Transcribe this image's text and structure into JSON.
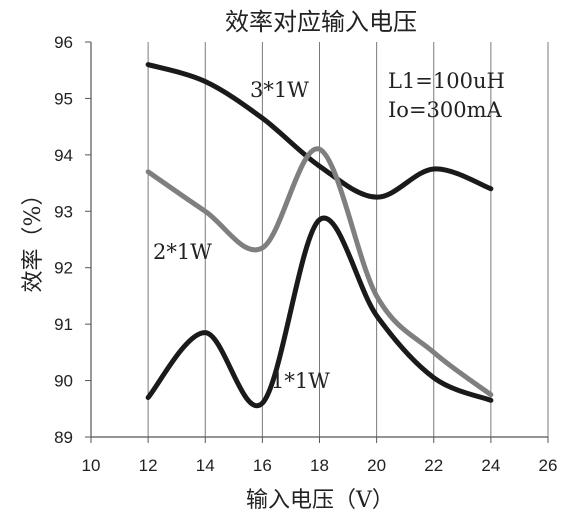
{
  "chart_data": {
    "type": "line",
    "title": "效率对应输入电压",
    "xlabel": "输入电压（V）",
    "ylabel": "效率（%）",
    "xlim": [
      10,
      26
    ],
    "ylim": [
      89,
      96
    ],
    "xticks": [
      10,
      12,
      14,
      16,
      18,
      20,
      22,
      24,
      26
    ],
    "yticks": [
      89,
      90,
      91,
      92,
      93,
      94,
      95,
      96
    ],
    "grid": "vertical",
    "annotation": {
      "line1": "L1=100uH",
      "line2": "Io=300mA"
    },
    "series": [
      {
        "name": "3*1W",
        "color": "#1a1a1a",
        "x": [
          12,
          14,
          16,
          18,
          20,
          22,
          24
        ],
        "y": [
          95.6,
          95.3,
          94.65,
          93.8,
          93.25,
          93.75,
          93.4
        ]
      },
      {
        "name": "2*1W",
        "color": "#7f7f7f",
        "x": [
          12,
          14,
          16,
          18,
          20,
          22,
          24
        ],
        "y": [
          93.7,
          93.0,
          92.35,
          94.1,
          91.5,
          90.5,
          89.75
        ]
      },
      {
        "name": "1*1W",
        "color": "#1a1a1a",
        "x": [
          12,
          14,
          16,
          18,
          20,
          22,
          24
        ],
        "y": [
          89.7,
          90.85,
          89.6,
          92.85,
          91.15,
          90.05,
          89.65
        ]
      }
    ]
  }
}
